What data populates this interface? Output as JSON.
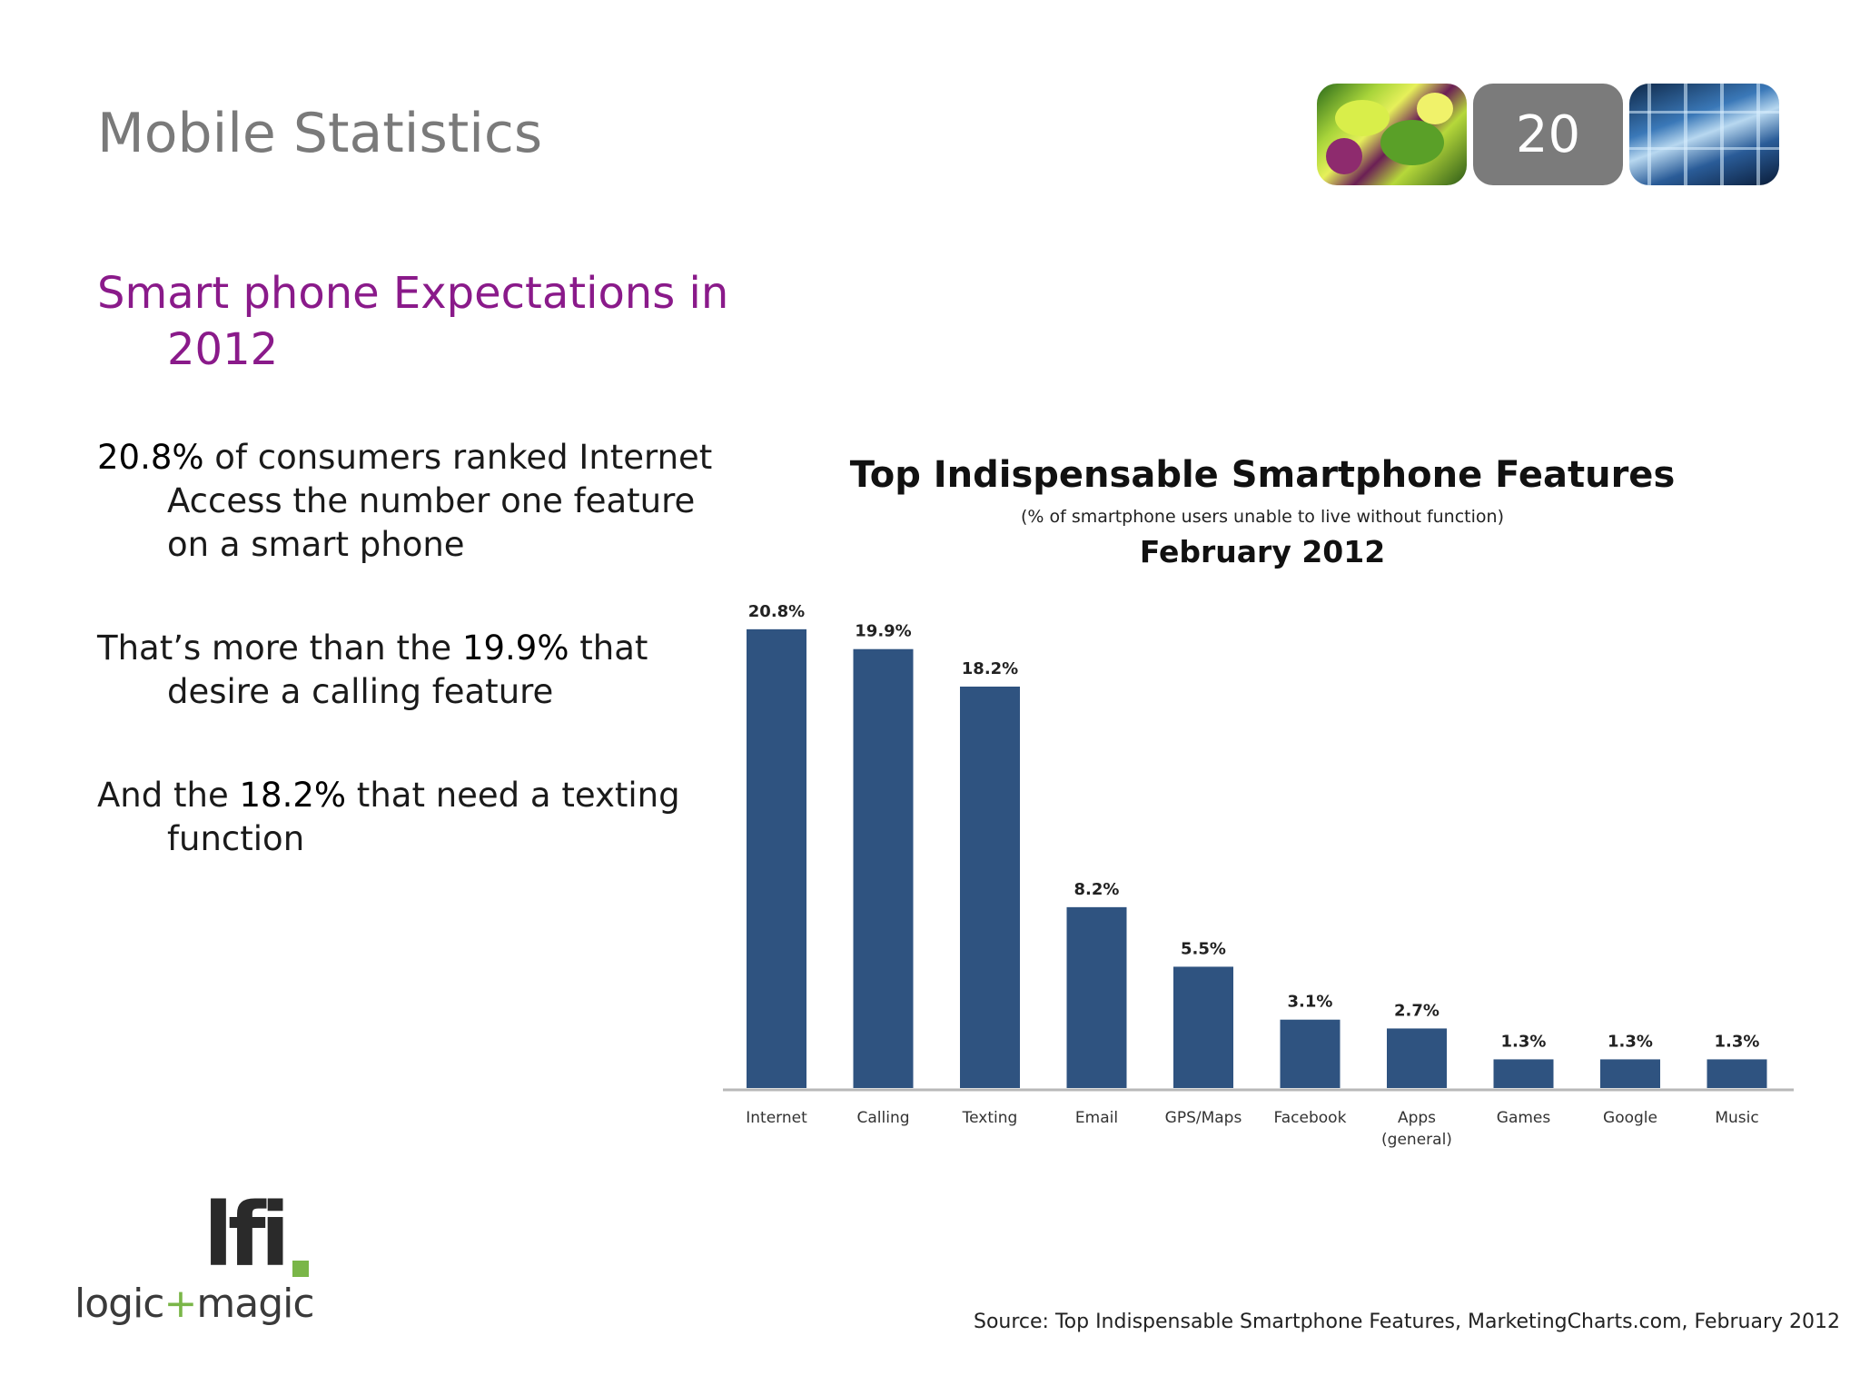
{
  "slide": {
    "title": "Mobile Statistics",
    "page_number": "20",
    "subheading_line1": "Smart phone Expectations in",
    "subheading_line2": "2012",
    "bullets": [
      {
        "strong": "20.8%",
        "rest": " of consumers ranked Internet Access the number one feature on a smart phone"
      },
      {
        "lead": "That’s more than the ",
        "strong": "19.9%",
        "rest": " that desire a calling feature"
      },
      {
        "lead": "And the ",
        "strong": "18.2%",
        "rest": " that need a texting function"
      }
    ],
    "source": "Source: Top Indispensable Smartphone Features, MarketingCharts.com, February 2012",
    "logo_mark": "lfi",
    "logo_text_a": "logic",
    "logo_text_plus": "+",
    "logo_text_b": "magic"
  },
  "colors": {
    "bar": "#2f5380",
    "axis": "#b8b8b8",
    "accent_purple": "#8a1a8a",
    "logo_green": "#7ab648"
  },
  "chart_data": {
    "type": "bar",
    "title": "Top Indispensable Smartphone Features",
    "subtitle": "(% of smartphone users unable to live without function)",
    "date": "February 2012",
    "categories": [
      "Internet",
      "Calling",
      "Texting",
      "Email",
      "GPS/Maps",
      "Facebook",
      "Apps (general)",
      "Games",
      "Google",
      "Music"
    ],
    "values": [
      20.8,
      19.9,
      18.2,
      8.2,
      5.5,
      3.1,
      2.7,
      1.3,
      1.3,
      1.3
    ],
    "labels": [
      "20.8%",
      "19.9%",
      "18.2%",
      "8.2%",
      "5.5%",
      "3.1%",
      "2.7%",
      "1.3%",
      "1.3%",
      "1.3%"
    ],
    "xlabel": "",
    "ylabel": "",
    "ylim": [
      0,
      21
    ],
    "grid": false,
    "legend": "none"
  }
}
